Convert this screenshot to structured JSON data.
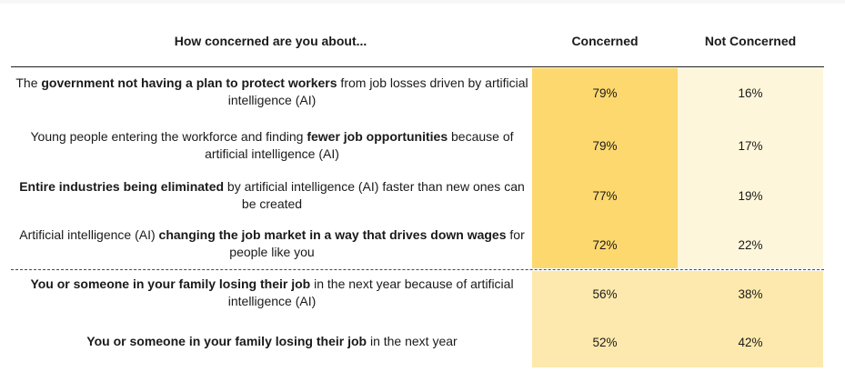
{
  "table": {
    "question_header": "How concerned are you about...",
    "col_concerned": "Concerned",
    "col_not_concerned": "Not Concerned"
  },
  "rows": [
    {
      "parts": [
        {
          "t": "The ",
          "b": false
        },
        {
          "t": "government not having a plan to protect workers",
          "b": true
        },
        {
          "t": " from job losses driven by artificial intelligence (AI)",
          "b": false
        }
      ],
      "concerned": "79%",
      "not_concerned": "16%"
    },
    {
      "parts": [
        {
          "t": "Young people entering the workforce and finding ",
          "b": false
        },
        {
          "t": "fewer job opportunities",
          "b": true
        },
        {
          "t": " because of artificial intelligence (AI)",
          "b": false
        }
      ],
      "concerned": "79%",
      "not_concerned": "17%"
    },
    {
      "parts": [
        {
          "t": "Entire industries being eliminated",
          "b": true
        },
        {
          "t": " by artificial intelligence (AI) faster than new ones can be created",
          "b": false
        }
      ],
      "concerned": "77%",
      "not_concerned": "19%"
    },
    {
      "parts": [
        {
          "t": "Artificial intelligence (AI) ",
          "b": false
        },
        {
          "t": "changing the job market in a way that drives down wages",
          "b": true
        },
        {
          "t": " for people like you",
          "b": false
        }
      ],
      "concerned": "72%",
      "not_concerned": "22%"
    },
    {
      "parts": [
        {
          "t": "You or someone in your family losing their job",
          "b": true
        },
        {
          "t": " in the next year because of artificial intelligence (AI)",
          "b": false
        }
      ],
      "concerned": "56%",
      "not_concerned": "38%"
    },
    {
      "parts": [
        {
          "t": "You or someone in your family losing their job",
          "b": true
        },
        {
          "t": " in the next year",
          "b": false
        }
      ],
      "concerned": "52%",
      "not_concerned": "42%"
    }
  ],
  "chart_data": {
    "type": "table",
    "title": "How concerned are you about...",
    "columns": [
      "Concerned",
      "Not Concerned"
    ],
    "categories": [
      "The government not having a plan to protect workers from job losses driven by artificial intelligence (AI)",
      "Young people entering the workforce and finding fewer job opportunities because of artificial intelligence (AI)",
      "Entire industries being eliminated by artificial intelligence (AI) faster than new ones can be created",
      "Artificial intelligence (AI) changing the job market in a way that drives down wages for people like you",
      "You or someone in your family losing their job in the next year because of artificial intelligence (AI)",
      "You or someone in your family losing their job in the next year"
    ],
    "series": [
      {
        "name": "Concerned",
        "values": [
          79,
          79,
          77,
          72,
          56,
          52
        ]
      },
      {
        "name": "Not Concerned",
        "values": [
          16,
          17,
          19,
          22,
          38,
          42
        ]
      }
    ],
    "heat_colors": {
      "group1": "#fdd86f",
      "group2": "#fde9ad",
      "light": "#fef6da"
    }
  }
}
